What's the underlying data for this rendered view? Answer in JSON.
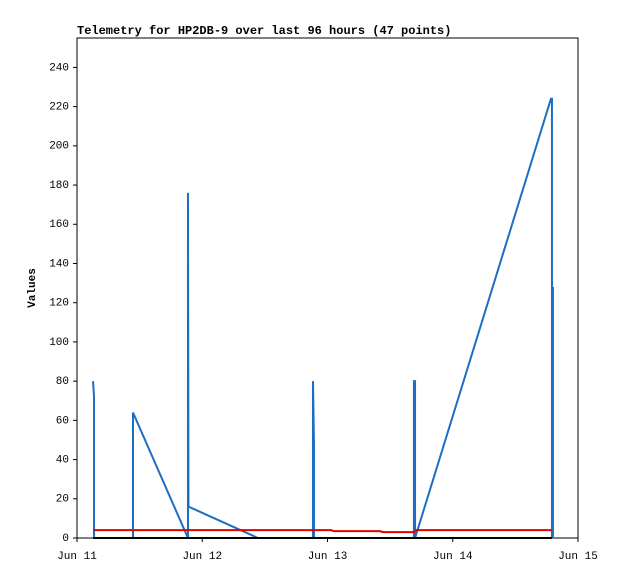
{
  "chart_data": {
    "type": "line",
    "title": "Telemetry for HP2DB-9 over last 96 hours (47 points)",
    "y_label": "Values",
    "xlim": [
      11,
      15
    ],
    "xticks": [
      {
        "value": 11,
        "label": "Jun 11"
      },
      {
        "value": 12,
        "label": "Jun 12"
      },
      {
        "value": 13,
        "label": "Jun 13"
      },
      {
        "value": 14,
        "label": "Jun 14"
      },
      {
        "value": 15,
        "label": "Jun 15"
      }
    ],
    "ylim": [
      0,
      255
    ],
    "yticks": [
      0,
      20,
      40,
      60,
      80,
      100,
      120,
      140,
      160,
      180,
      200,
      220,
      240
    ],
    "series": [
      {
        "color": "#1b6ec2",
        "x": [
          11.128,
          11.136,
          11.136,
          11.447,
          11.447,
          11.886,
          11.886,
          11.89,
          12.445,
          12.884,
          12.884,
          12.892,
          12.892,
          13.69,
          13.69,
          13.699,
          13.699,
          14.784,
          14.792,
          14.792,
          14.8,
          14.8
        ],
        "values": [
          80,
          72,
          0,
          0,
          64,
          0,
          176,
          16,
          0,
          0,
          80,
          48,
          0,
          0,
          80,
          80,
          0,
          224,
          224,
          0,
          128,
          0
        ]
      },
      {
        "color": "#e00000",
        "x": [
          11.128,
          13.03,
          13.05,
          13.42,
          13.44,
          13.69,
          13.71,
          14.792
        ],
        "values": [
          4,
          4,
          3.5,
          3.5,
          3,
          3,
          4,
          4
        ]
      },
      {
        "color": "#000000",
        "x": [
          11.128,
          14.792
        ],
        "values": [
          0,
          0
        ]
      }
    ]
  }
}
